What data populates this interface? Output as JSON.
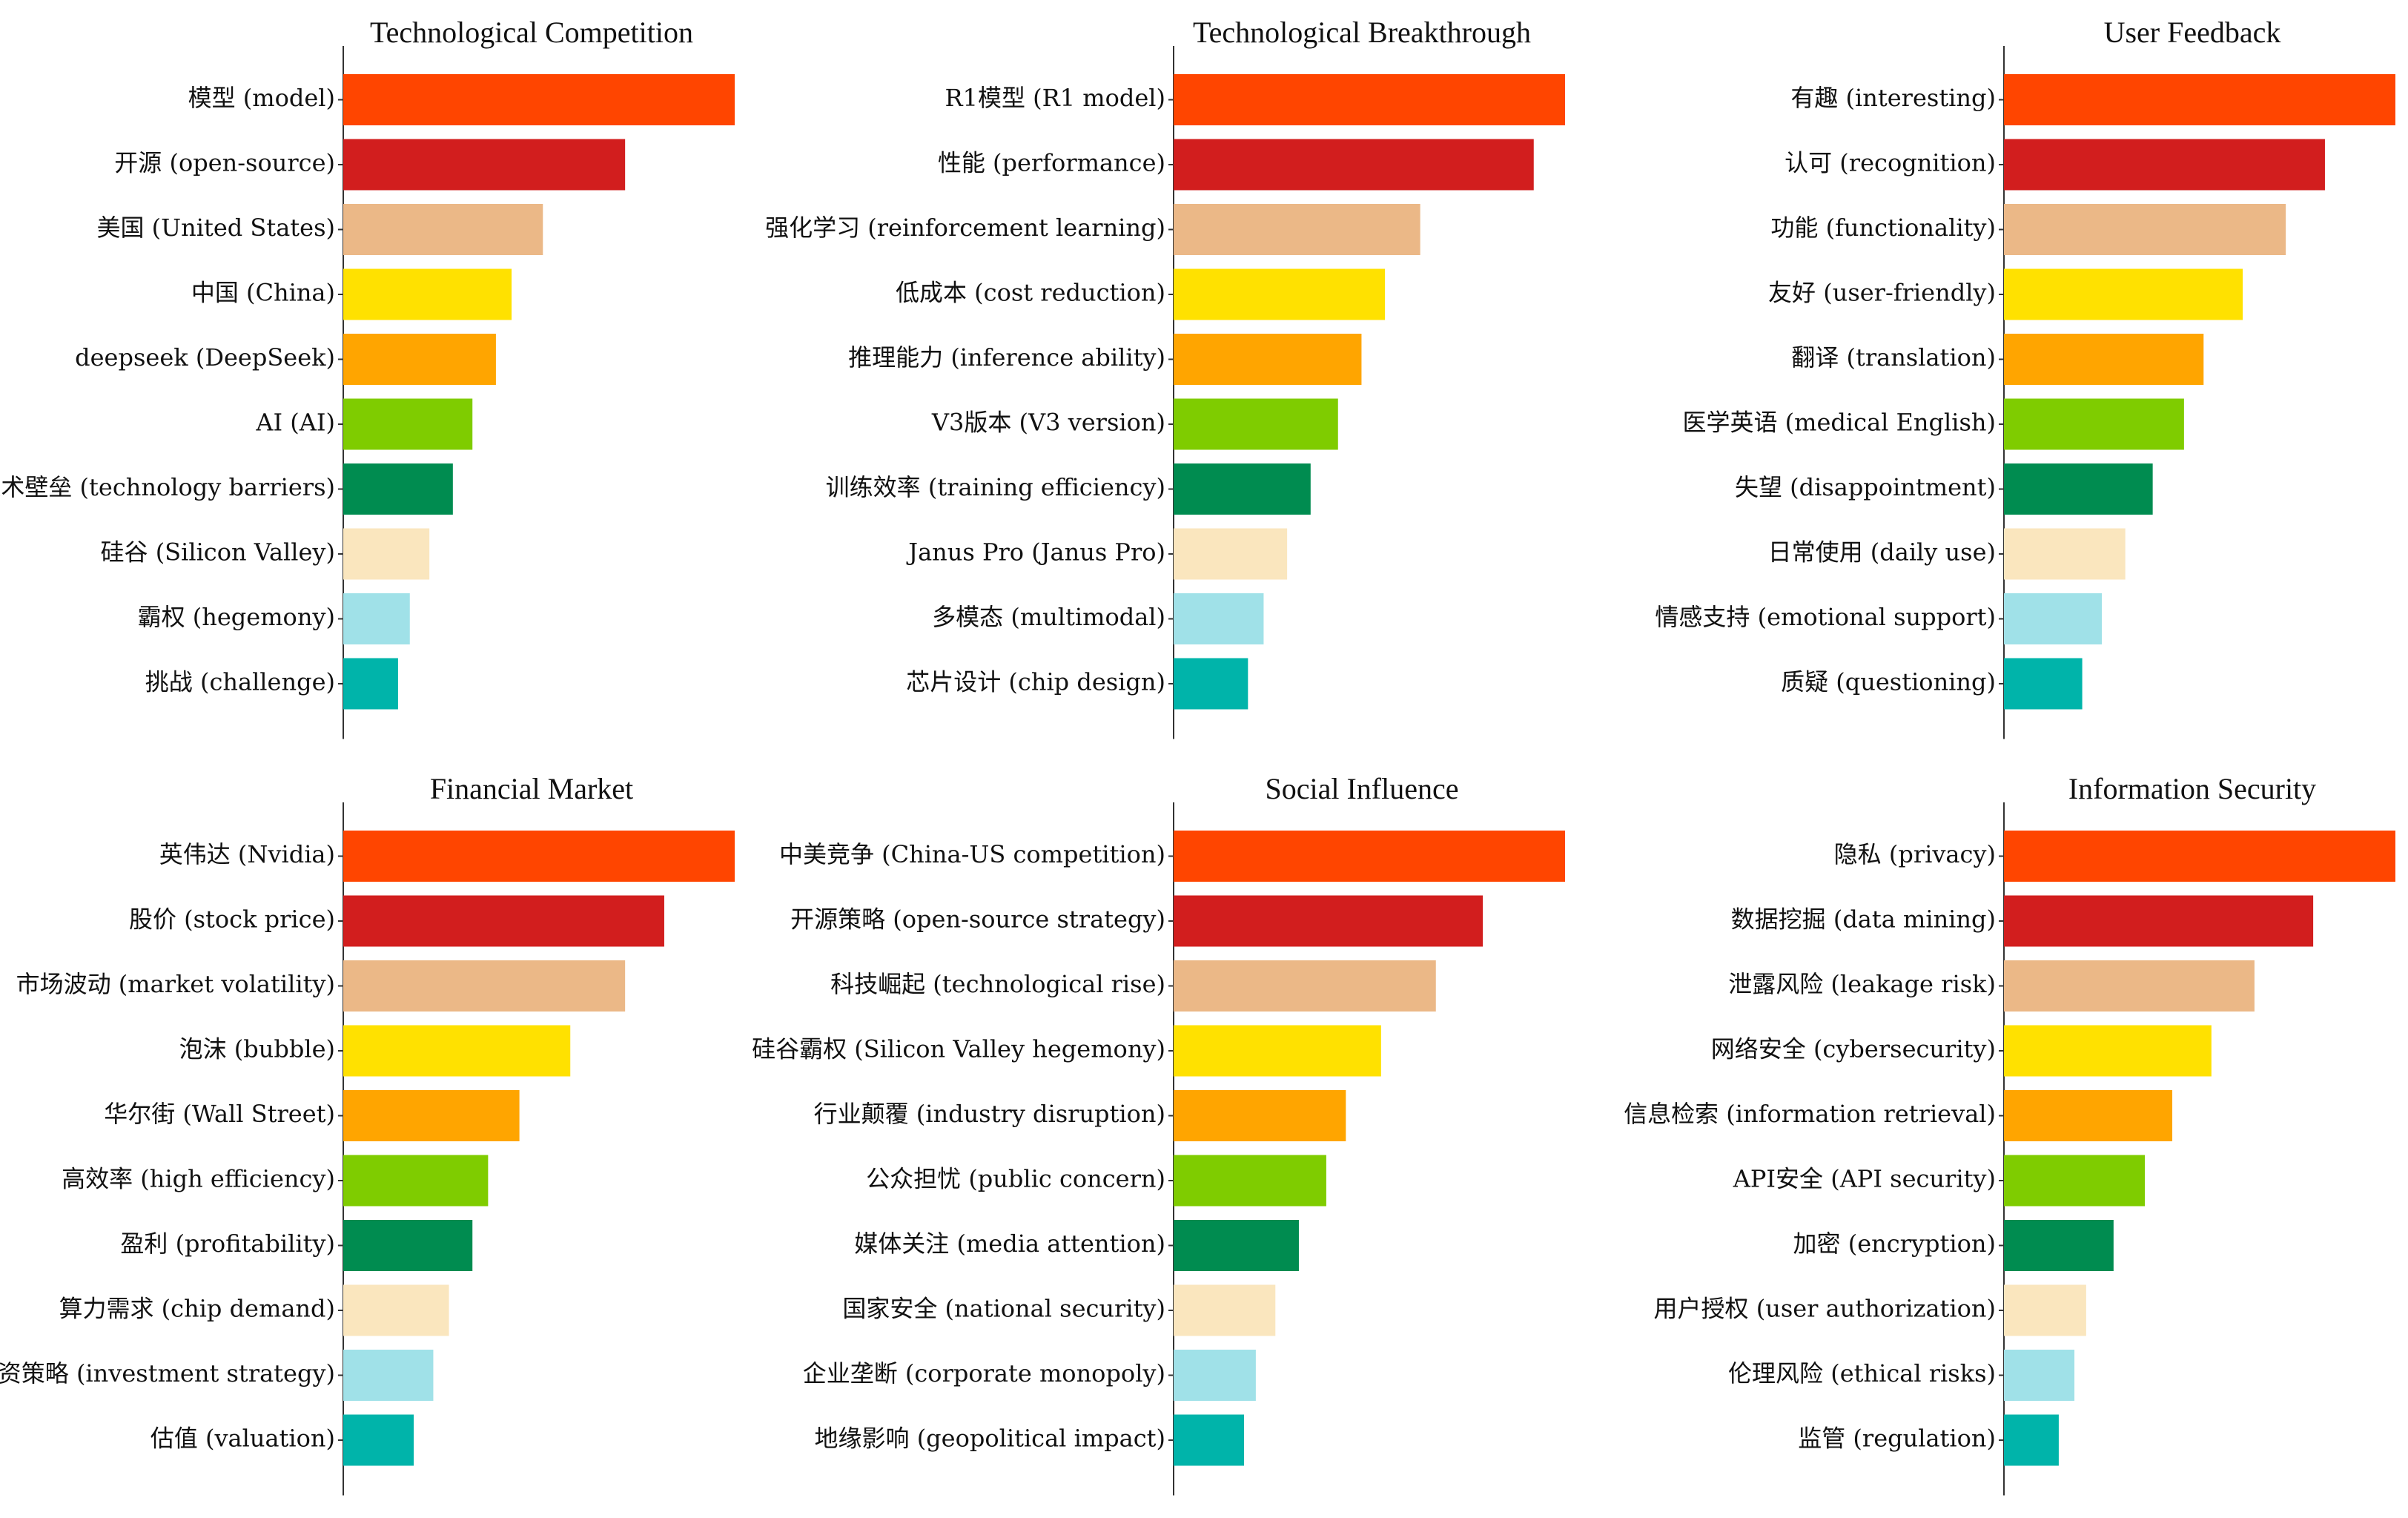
{
  "figure": {
    "layout": "2x3 grid of horizontal bar charts"
  },
  "palette": [
    "#FF4500",
    "#D21E1E",
    "#EBB887",
    "#FFE100",
    "#FFA500",
    "#7FCC00",
    "#008C50",
    "#FAE6BE",
    "#A0E1E8",
    "#00B4AA"
  ],
  "chart_data": [
    {
      "type": "bar",
      "orientation": "horizontal",
      "title": "Technological Competition",
      "categories": [
        "模型 (model)",
        "开源 (open-source)",
        "美国 (United States)",
        "中国 (China)",
        "deepseek (DeepSeek)",
        "AI (AI)",
        "技术壁垒 (technology barriers)",
        "硅谷 (Silicon Valley)",
        "霸权 (hegemony)",
        "挑战 (challenge)"
      ],
      "values": [
        100,
        72,
        51,
        43,
        39,
        33,
        28,
        22,
        17,
        14
      ],
      "xlim": [
        0,
        100
      ],
      "xlabel": "",
      "ylabel": ""
    },
    {
      "type": "bar",
      "orientation": "horizontal",
      "title": "Technological Breakthrough",
      "categories": [
        "R1模型 (R1 model)",
        "性能 (performance)",
        "强化学习 (reinforcement learning)",
        "低成本 (cost reduction)",
        "推理能力 (inference ability)",
        "V3版本 (V3 version)",
        "训练效率 (training efficiency)",
        "Janus Pro (Janus Pro)",
        "多模态 (multimodal)",
        "芯片设计 (chip design)"
      ],
      "values": [
        100,
        92,
        63,
        54,
        48,
        42,
        35,
        29,
        23,
        19
      ],
      "xlim": [
        0,
        100
      ],
      "xlabel": "",
      "ylabel": ""
    },
    {
      "type": "bar",
      "orientation": "horizontal",
      "title": "User Feedback",
      "categories": [
        "有趣 (interesting)",
        "认可 (recognition)",
        "功能 (functionality)",
        "友好 (user-friendly)",
        "翻译 (translation)",
        "医学英语 (medical English)",
        "失望 (disappointment)",
        "日常使用 (daily use)",
        "情感支持 (emotional support)",
        "质疑 (questioning)"
      ],
      "values": [
        100,
        82,
        72,
        61,
        51,
        46,
        38,
        31,
        25,
        20
      ],
      "xlim": [
        0,
        100
      ],
      "xlabel": "",
      "ylabel": ""
    },
    {
      "type": "bar",
      "orientation": "horizontal",
      "title": "Financial Market",
      "categories": [
        "英伟达 (Nvidia)",
        "股价 (stock price)",
        "市场波动 (market volatility)",
        "泡沫 (bubble)",
        "华尔街 (Wall Street)",
        "高效率 (high efficiency)",
        "盈利 (profitability)",
        "算力需求 (chip demand)",
        "投资策略 (investment strategy)",
        "估值 (valuation)"
      ],
      "values": [
        100,
        82,
        72,
        58,
        45,
        37,
        33,
        27,
        23,
        18
      ],
      "xlim": [
        0,
        100
      ],
      "xlabel": "",
      "ylabel": ""
    },
    {
      "type": "bar",
      "orientation": "horizontal",
      "title": "Social Influence",
      "categories": [
        "中美竞争 (China-US competition)",
        "开源策略 (open-source strategy)",
        "科技崛起 (technological rise)",
        "硅谷霸权 (Silicon Valley hegemony)",
        "行业颠覆 (industry disruption)",
        "公众担忧 (public concern)",
        "媒体关注 (media attention)",
        "国家安全 (national security)",
        "企业垄断 (corporate monopoly)",
        "地缘影响 (geopolitical impact)"
      ],
      "values": [
        100,
        79,
        67,
        53,
        44,
        39,
        32,
        26,
        21,
        18
      ],
      "xlim": [
        0,
        100
      ],
      "xlabel": "",
      "ylabel": ""
    },
    {
      "type": "bar",
      "orientation": "horizontal",
      "title": "Information Security",
      "categories": [
        "隐私 (privacy)",
        "数据挖掘 (data mining)",
        "泄露风险 (leakage risk)",
        "网络安全 (cybersecurity)",
        "信息检索 (information retrieval)",
        "API安全 (API security)",
        "加密 (encryption)",
        "用户授权 (user authorization)",
        "伦理风险 (ethical risks)",
        "监管 (regulation)"
      ],
      "values": [
        100,
        79,
        64,
        53,
        43,
        36,
        28,
        21,
        18,
        14
      ],
      "xlim": [
        0,
        100
      ],
      "xlabel": "",
      "ylabel": ""
    }
  ]
}
